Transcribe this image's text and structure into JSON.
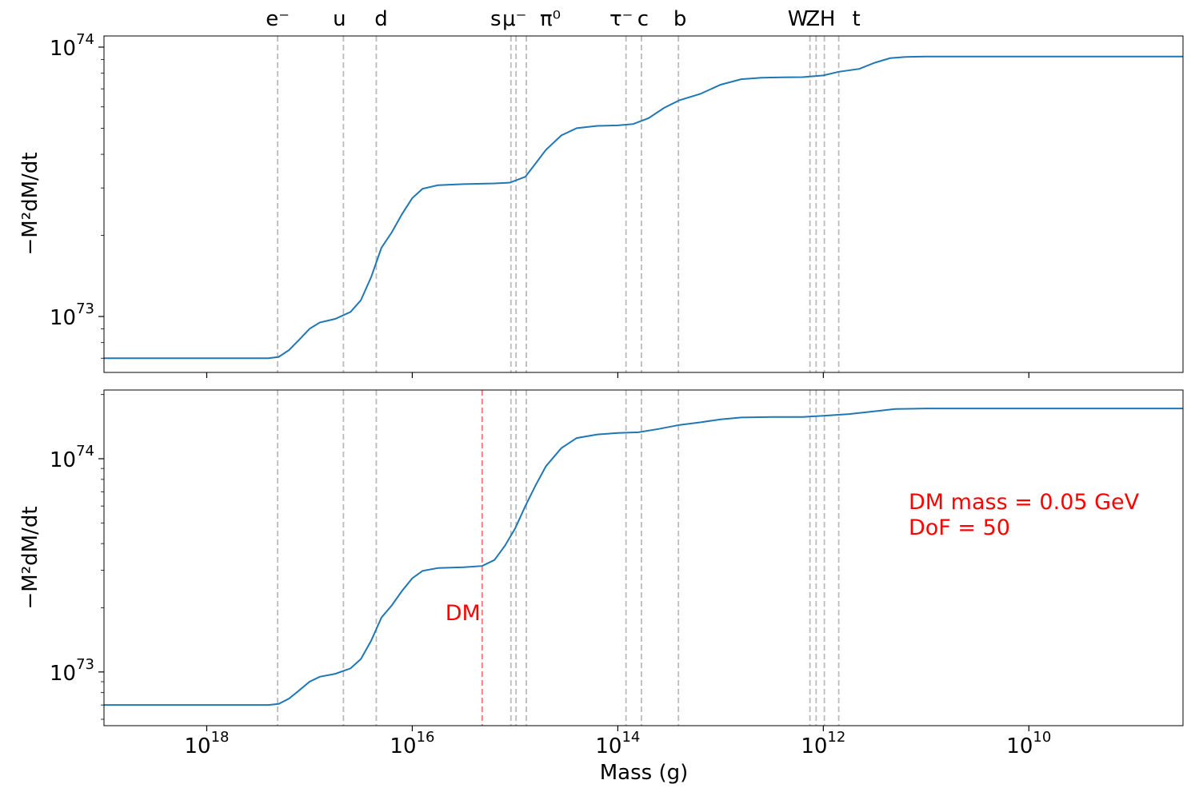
{
  "chart_data": {
    "type": "line",
    "xlabel": "Mass (g)",
    "ylabel_top": "−M²dM/dt",
    "ylabel_bottom": "−M²dM/dt",
    "x_scale": "log",
    "x_reversed": true,
    "xlim_log10": [
      19,
      8.5
    ],
    "x_ticks": [
      {
        "log": 18,
        "base": "10",
        "exp": "18"
      },
      {
        "log": 16,
        "base": "10",
        "exp": "16"
      },
      {
        "log": 14,
        "base": "10",
        "exp": "14"
      },
      {
        "log": 12,
        "base": "10",
        "exp": "12"
      },
      {
        "log": 10,
        "base": "10",
        "exp": "10"
      }
    ],
    "particle_thresholds": [
      {
        "label": "e⁻",
        "log_mass": 17.31
      },
      {
        "label": "u",
        "log_mass": 16.67
      },
      {
        "label": "d",
        "log_mass": 16.35
      },
      {
        "label": "s",
        "log_mass": 15.04
      },
      {
        "label": "μ⁻",
        "log_mass": 14.99
      },
      {
        "label": "π⁰",
        "log_mass": 14.89
      },
      {
        "label": "τ⁻",
        "log_mass": 13.92
      },
      {
        "label": "c",
        "log_mass": 13.77
      },
      {
        "label": "b",
        "log_mass": 13.41
      },
      {
        "label": "W",
        "log_mass": 12.13
      },
      {
        "label": "Z",
        "log_mass": 12.07
      },
      {
        "label": "H",
        "log_mass": 11.99
      },
      {
        "label": "t",
        "log_mass": 11.85
      }
    ],
    "panels": [
      {
        "name": "top",
        "y_scale": "log",
        "ylim": [
          6.2e+72,
          1.1e+74
        ],
        "y_ticks": [
          {
            "value": 1e+73,
            "base": "10",
            "exp": "73"
          },
          {
            "value": 1e+74,
            "base": "10",
            "exp": "74"
          }
        ],
        "series": [
          {
            "color": "#1f77b4",
            "points": [
              [
                19.0,
                7e+72
              ],
              [
                17.4,
                7e+72
              ],
              [
                17.3,
                7.08e+72
              ],
              [
                17.2,
                7.5e+72
              ],
              [
                17.1,
                8.2e+72
              ],
              [
                17.0,
                9e+72
              ],
              [
                16.9,
                9.5e+72
              ],
              [
                16.75,
                9.8e+72
              ],
              [
                16.6,
                1.04e+73
              ],
              [
                16.5,
                1.15e+73
              ],
              [
                16.4,
                1.4e+73
              ],
              [
                16.3,
                1.8e+73
              ],
              [
                16.2,
                2.05e+73
              ],
              [
                16.1,
                2.4e+73
              ],
              [
                16.0,
                2.75e+73
              ],
              [
                15.9,
                2.98e+73
              ],
              [
                15.75,
                3.07e+73
              ],
              [
                15.5,
                3.1e+73
              ],
              [
                15.2,
                3.12e+73
              ],
              [
                15.05,
                3.14e+73
              ],
              [
                14.9,
                3.3e+73
              ],
              [
                14.8,
                3.7e+73
              ],
              [
                14.7,
                4.15e+73
              ],
              [
                14.55,
                4.7e+73
              ],
              [
                14.4,
                5e+73
              ],
              [
                14.2,
                5.1e+73
              ],
              [
                14.0,
                5.12e+73
              ],
              [
                13.85,
                5.18e+73
              ],
              [
                13.7,
                5.45e+73
              ],
              [
                13.55,
                5.95e+73
              ],
              [
                13.4,
                6.35e+73
              ],
              [
                13.2,
                6.7e+73
              ],
              [
                13.0,
                7.25e+73
              ],
              [
                12.8,
                7.6e+73
              ],
              [
                12.6,
                7.7e+73
              ],
              [
                12.4,
                7.72e+73
              ],
              [
                12.2,
                7.74e+73
              ],
              [
                12.0,
                7.85e+73
              ],
              [
                11.85,
                8.1e+73
              ],
              [
                11.65,
                8.3e+73
              ],
              [
                11.5,
                8.75e+73
              ],
              [
                11.35,
                9.1e+73
              ],
              [
                11.2,
                9.2e+73
              ],
              [
                11.0,
                9.22e+73
              ],
              [
                10.0,
                9.22e+73
              ],
              [
                8.5,
                9.22e+73
              ]
            ]
          }
        ]
      },
      {
        "name": "bottom",
        "y_scale": "log",
        "ylim": [
          5.6e+72,
          2.1e+74
        ],
        "y_ticks": [
          {
            "value": 1e+73,
            "base": "10",
            "exp": "73"
          },
          {
            "value": 1e+74,
            "base": "10",
            "exp": "74"
          }
        ],
        "dm_line": {
          "label": "DM",
          "log_mass": 15.32,
          "color": "#ff0000"
        },
        "annotation": [
          "DM mass = 0.05 GeV",
          "DoF = 50"
        ],
        "series": [
          {
            "color": "#1f77b4",
            "points": [
              [
                19.0,
                7e+72
              ],
              [
                17.4,
                7e+72
              ],
              [
                17.3,
                7.08e+72
              ],
              [
                17.2,
                7.5e+72
              ],
              [
                17.1,
                8.2e+72
              ],
              [
                17.0,
                9e+72
              ],
              [
                16.9,
                9.5e+72
              ],
              [
                16.75,
                9.8e+72
              ],
              [
                16.6,
                1.04e+73
              ],
              [
                16.5,
                1.15e+73
              ],
              [
                16.4,
                1.4e+73
              ],
              [
                16.3,
                1.8e+73
              ],
              [
                16.2,
                2.05e+73
              ],
              [
                16.1,
                2.4e+73
              ],
              [
                16.0,
                2.75e+73
              ],
              [
                15.9,
                2.98e+73
              ],
              [
                15.75,
                3.07e+73
              ],
              [
                15.5,
                3.1e+73
              ],
              [
                15.32,
                3.14e+73
              ],
              [
                15.2,
                3.35e+73
              ],
              [
                15.1,
                3.9e+73
              ],
              [
                15.0,
                4.7e+73
              ],
              [
                14.9,
                6e+73
              ],
              [
                14.8,
                7.5e+73
              ],
              [
                14.7,
                9.2e+73
              ],
              [
                14.55,
                1.12e+74
              ],
              [
                14.4,
                1.25e+74
              ],
              [
                14.2,
                1.3e+74
              ],
              [
                14.0,
                1.32e+74
              ],
              [
                13.8,
                1.33e+74
              ],
              [
                13.6,
                1.38e+74
              ],
              [
                13.4,
                1.44e+74
              ],
              [
                13.2,
                1.48e+74
              ],
              [
                13.0,
                1.53e+74
              ],
              [
                12.8,
                1.56e+74
              ],
              [
                12.5,
                1.57e+74
              ],
              [
                12.2,
                1.57e+74
              ],
              [
                12.0,
                1.59e+74
              ],
              [
                11.75,
                1.62e+74
              ],
              [
                11.5,
                1.67e+74
              ],
              [
                11.3,
                1.71e+74
              ],
              [
                11.0,
                1.72e+74
              ],
              [
                10.0,
                1.72e+74
              ],
              [
                8.5,
                1.72e+74
              ]
            ]
          }
        ]
      }
    ],
    "colors": {
      "line": "#1f77b4",
      "threshold": "#bbbbbb",
      "dm": "#ff0000"
    }
  }
}
